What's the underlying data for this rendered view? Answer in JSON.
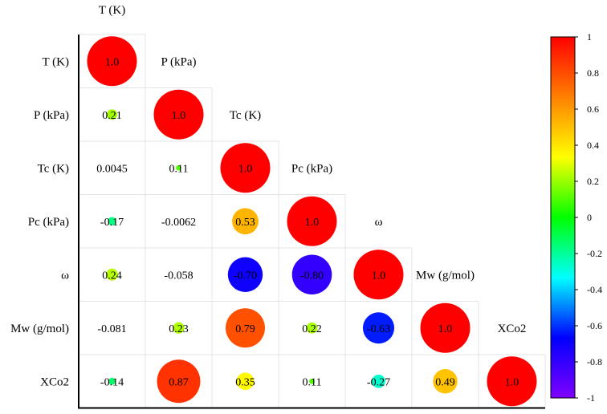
{
  "chart_data": {
    "type": "heatmap",
    "title": "",
    "variables": [
      "T (K)",
      "P (kPa)",
      "Tc (K)",
      "Pc (kPa)",
      "ω",
      "Mw (g/mol)",
      "XCo2"
    ],
    "top_label": "T (K)",
    "values": [
      [
        "1.0"
      ],
      [
        "0.21",
        "1.0"
      ],
      [
        "0.0045",
        "0.11",
        "1.0"
      ],
      [
        "-0.17",
        "-0.0062",
        "0.53",
        "1.0"
      ],
      [
        "0.24",
        "-0.058",
        "-0.70",
        "-0.80",
        "1.0"
      ],
      [
        "-0.081",
        "0.23",
        "0.79",
        "0.22",
        "-0.63",
        "1.0"
      ],
      [
        "-0.14",
        "0.87",
        "0.35",
        "0.11",
        "-0.27",
        "0.49",
        "1.0"
      ]
    ],
    "circle_threshold": 0.1,
    "colorbar": {
      "range": [
        -1,
        1
      ],
      "ticks": [
        "1",
        "0.8",
        "0.6",
        "0.4",
        "0.2",
        "0",
        "-0.2",
        "-0.4",
        "-0.6",
        "-0.8",
        "-1"
      ],
      "colors": [
        "#ff0000",
        "#ff8000",
        "#ffff00",
        "#00ff00",
        "#00ffff",
        "#0000ff",
        "#8000ff"
      ]
    }
  }
}
